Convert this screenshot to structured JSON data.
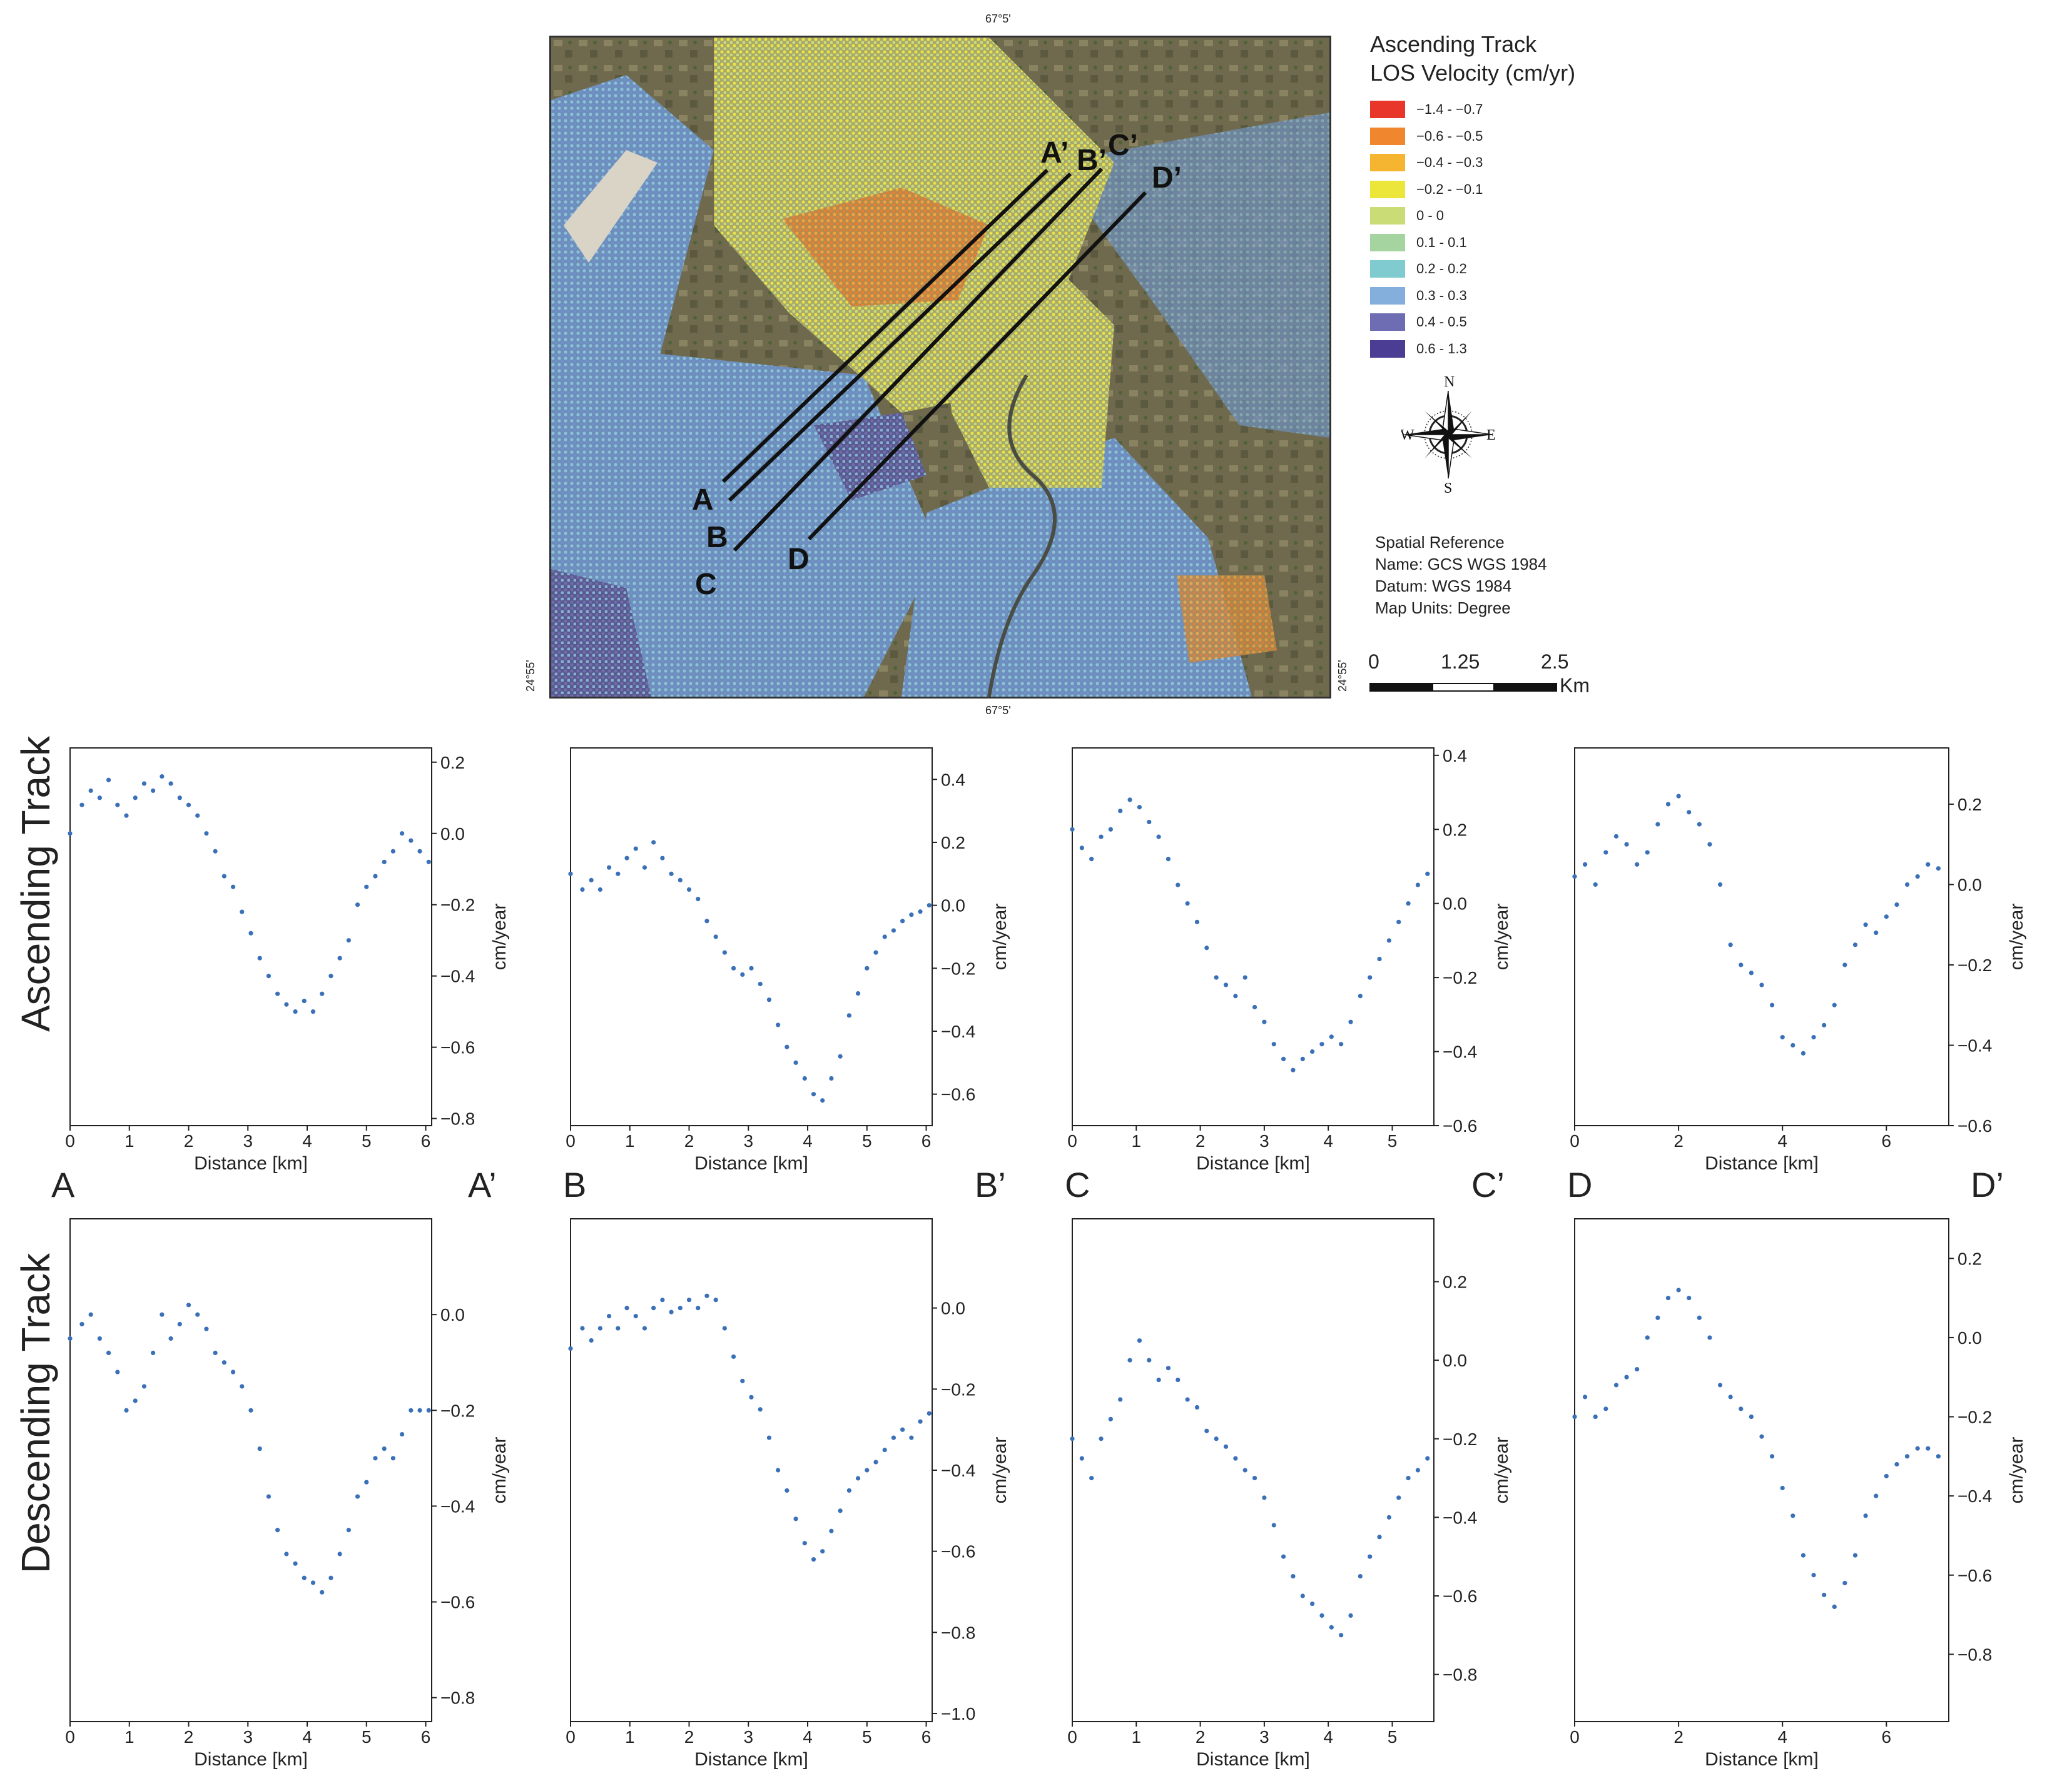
{
  "map": {
    "coord_top": "67°5'",
    "coord_bottom": "67°5'",
    "coord_left": "24°55'",
    "coord_right": "24°55'",
    "profile_labels": {
      "A": "A",
      "A_end": "A’",
      "B": "B",
      "B_end": "B’",
      "C": "C",
      "C_end": "C’",
      "D": "D",
      "D_end": "D’"
    }
  },
  "legend": {
    "title_line1": "Ascending Track",
    "title_line2": "LOS Velocity (cm/yr)",
    "classes": [
      {
        "label": "−1.4 - −0.7",
        "color": "#e8372a"
      },
      {
        "label": "−0.6 - −0.5",
        "color": "#f0862e"
      },
      {
        "label": "−0.4 - −0.3",
        "color": "#f5b531"
      },
      {
        "label": "−0.2 - −0.1",
        "color": "#ede63a"
      },
      {
        "label": "0 - 0",
        "color": "#c9dc75"
      },
      {
        "label": "0.1 - 0.1",
        "color": "#a6d4a1"
      },
      {
        "label": "0.2 - 0.2",
        "color": "#7fcbcf"
      },
      {
        "label": "0.3 - 0.3",
        "color": "#84aedc"
      },
      {
        "label": "0.4 - 0.5",
        "color": "#6e6cb2"
      },
      {
        "label": "0.6 - 1.3",
        "color": "#4b3d94"
      }
    ]
  },
  "compass": {
    "n": "N",
    "s": "S",
    "e": "E",
    "w": "W"
  },
  "spatial_reference": {
    "line1": "Spatial Reference",
    "line2": "Name: GCS WGS 1984",
    "line3": "Datum: WGS 1984",
    "line4": "Map Units: Degree"
  },
  "scalebar": {
    "t0": "0",
    "t1": "1.25",
    "t2": "2.5",
    "unit": "Km"
  },
  "rows": {
    "ascending": "Ascending Track",
    "descending": "Descending Track"
  },
  "profile_names": [
    {
      "start": "A",
      "end": "A’"
    },
    {
      "start": "B",
      "end": "B’"
    },
    {
      "start": "C",
      "end": "C’"
    },
    {
      "start": "D",
      "end": "D’"
    }
  ],
  "colors": {
    "point": "#3a70b8",
    "axis": "#222222"
  },
  "chart_data": [
    {
      "id": "asc-A",
      "type": "scatter",
      "track": "Ascending Track",
      "xlabel": "Distance [km]",
      "ylabel": "cm/year",
      "xlim": [
        0,
        6.1
      ],
      "ylim": [
        -0.82,
        0.24
      ],
      "xticks": [
        0,
        1,
        2,
        3,
        4,
        5,
        6
      ],
      "yticks": [
        0.2,
        0.0,
        -0.2,
        -0.4,
        -0.6,
        -0.8
      ],
      "x": [
        0,
        0.2,
        0.35,
        0.5,
        0.65,
        0.8,
        0.95,
        1.1,
        1.25,
        1.4,
        1.55,
        1.7,
        1.85,
        2.0,
        2.15,
        2.3,
        2.45,
        2.6,
        2.75,
        2.9,
        3.05,
        3.2,
        3.35,
        3.5,
        3.65,
        3.8,
        3.95,
        4.1,
        4.25,
        4.4,
        4.55,
        4.7,
        4.85,
        5.0,
        5.15,
        5.3,
        5.45,
        5.6,
        5.75,
        5.9,
        6.05
      ],
      "y": [
        0.0,
        0.08,
        0.12,
        0.1,
        0.15,
        0.08,
        0.05,
        0.1,
        0.14,
        0.12,
        0.16,
        0.14,
        0.1,
        0.08,
        0.05,
        0.0,
        -0.05,
        -0.12,
        -0.15,
        -0.22,
        -0.28,
        -0.35,
        -0.4,
        -0.45,
        -0.48,
        -0.5,
        -0.47,
        -0.5,
        -0.45,
        -0.4,
        -0.35,
        -0.3,
        -0.2,
        -0.15,
        -0.12,
        -0.08,
        -0.05,
        0.0,
        -0.02,
        -0.05,
        -0.08
      ]
    },
    {
      "id": "asc-B",
      "type": "scatter",
      "track": "Ascending Track",
      "xlabel": "Distance [km]",
      "ylabel": "cm/year",
      "xlim": [
        0,
        6.1
      ],
      "ylim": [
        -0.7,
        0.5
      ],
      "xticks": [
        0,
        1,
        2,
        3,
        4,
        5,
        6
      ],
      "yticks": [
        0.4,
        0.2,
        0.0,
        -0.2,
        -0.4,
        -0.6
      ],
      "x": [
        0,
        0.2,
        0.35,
        0.5,
        0.65,
        0.8,
        0.95,
        1.1,
        1.25,
        1.4,
        1.55,
        1.7,
        1.85,
        2.0,
        2.15,
        2.3,
        2.45,
        2.6,
        2.75,
        2.9,
        3.05,
        3.2,
        3.35,
        3.5,
        3.65,
        3.8,
        3.95,
        4.1,
        4.25,
        4.4,
        4.55,
        4.7,
        4.85,
        5.0,
        5.15,
        5.3,
        5.45,
        5.6,
        5.75,
        5.9,
        6.05
      ],
      "y": [
        0.1,
        0.05,
        0.08,
        0.05,
        0.12,
        0.1,
        0.15,
        0.18,
        0.12,
        0.2,
        0.15,
        0.1,
        0.08,
        0.05,
        0.02,
        -0.05,
        -0.1,
        -0.15,
        -0.2,
        -0.22,
        -0.2,
        -0.25,
        -0.3,
        -0.38,
        -0.45,
        -0.5,
        -0.55,
        -0.6,
        -0.62,
        -0.55,
        -0.48,
        -0.35,
        -0.28,
        -0.2,
        -0.15,
        -0.1,
        -0.08,
        -0.05,
        -0.03,
        -0.02,
        0.0
      ]
    },
    {
      "id": "asc-C",
      "type": "scatter",
      "track": "Ascending Track",
      "xlabel": "Distance [km]",
      "ylabel": "cm/year",
      "xlim": [
        0,
        5.65
      ],
      "ylim": [
        -0.6,
        0.42
      ],
      "xticks": [
        0,
        1,
        2,
        3,
        4,
        5
      ],
      "yticks": [
        0.4,
        0.2,
        0.0,
        -0.2,
        -0.4,
        -0.6
      ],
      "x": [
        0,
        0.15,
        0.3,
        0.45,
        0.6,
        0.75,
        0.9,
        1.05,
        1.2,
        1.35,
        1.5,
        1.65,
        1.8,
        1.95,
        2.1,
        2.25,
        2.4,
        2.55,
        2.7,
        2.85,
        3.0,
        3.15,
        3.3,
        3.45,
        3.6,
        3.75,
        3.9,
        4.05,
        4.2,
        4.35,
        4.5,
        4.65,
        4.8,
        4.95,
        5.1,
        5.25,
        5.4,
        5.55
      ],
      "y": [
        0.2,
        0.15,
        0.12,
        0.18,
        0.2,
        0.25,
        0.28,
        0.26,
        0.22,
        0.18,
        0.12,
        0.05,
        0.0,
        -0.05,
        -0.12,
        -0.2,
        -0.22,
        -0.25,
        -0.2,
        -0.28,
        -0.32,
        -0.38,
        -0.42,
        -0.45,
        -0.42,
        -0.4,
        -0.38,
        -0.36,
        -0.38,
        -0.32,
        -0.25,
        -0.2,
        -0.15,
        -0.1,
        -0.05,
        0.0,
        0.05,
        0.08
      ]
    },
    {
      "id": "asc-D",
      "type": "scatter",
      "track": "Ascending Track",
      "xlabel": "Distance [km]",
      "ylabel": "cm/year",
      "xlim": [
        0,
        7.2
      ],
      "ylim": [
        -0.6,
        0.34
      ],
      "xticks": [
        0,
        2,
        4,
        6
      ],
      "yticks": [
        0.2,
        0.0,
        -0.2,
        -0.4,
        -0.6
      ],
      "x": [
        0,
        0.2,
        0.4,
        0.6,
        0.8,
        1.0,
        1.2,
        1.4,
        1.6,
        1.8,
        2.0,
        2.2,
        2.4,
        2.6,
        2.8,
        3.0,
        3.2,
        3.4,
        3.6,
        3.8,
        4.0,
        4.2,
        4.4,
        4.6,
        4.8,
        5.0,
        5.2,
        5.4,
        5.6,
        5.8,
        6.0,
        6.2,
        6.4,
        6.6,
        6.8,
        7.0
      ],
      "y": [
        0.02,
        0.05,
        0.0,
        0.08,
        0.12,
        0.1,
        0.05,
        0.08,
        0.15,
        0.2,
        0.22,
        0.18,
        0.15,
        0.1,
        0.0,
        -0.15,
        -0.2,
        -0.22,
        -0.25,
        -0.3,
        -0.38,
        -0.4,
        -0.42,
        -0.38,
        -0.35,
        -0.3,
        -0.2,
        -0.15,
        -0.1,
        -0.12,
        -0.08,
        -0.05,
        0.0,
        0.02,
        0.05,
        0.04
      ]
    },
    {
      "id": "desc-A",
      "type": "scatter",
      "track": "Descending Track",
      "xlabel": "Distance [km]",
      "ylabel": "cm/year",
      "xlim": [
        0,
        6.1
      ],
      "ylim": [
        -0.85,
        0.2
      ],
      "xticks": [
        0,
        1,
        2,
        3,
        4,
        5,
        6
      ],
      "yticks": [
        0.0,
        -0.2,
        -0.4,
        -0.6,
        -0.8
      ],
      "x": [
        0,
        0.2,
        0.35,
        0.5,
        0.65,
        0.8,
        0.95,
        1.1,
        1.25,
        1.4,
        1.55,
        1.7,
        1.85,
        2.0,
        2.15,
        2.3,
        2.45,
        2.6,
        2.75,
        2.9,
        3.05,
        3.2,
        3.35,
        3.5,
        3.65,
        3.8,
        3.95,
        4.1,
        4.25,
        4.4,
        4.55,
        4.7,
        4.85,
        5.0,
        5.15,
        5.3,
        5.45,
        5.6,
        5.75,
        5.9,
        6.05
      ],
      "y": [
        -0.05,
        -0.02,
        0.0,
        -0.05,
        -0.08,
        -0.12,
        -0.2,
        -0.18,
        -0.15,
        -0.08,
        0.0,
        -0.05,
        -0.02,
        0.02,
        0.0,
        -0.03,
        -0.08,
        -0.1,
        -0.12,
        -0.15,
        -0.2,
        -0.28,
        -0.38,
        -0.45,
        -0.5,
        -0.52,
        -0.55,
        -0.56,
        -0.58,
        -0.55,
        -0.5,
        -0.45,
        -0.38,
        -0.35,
        -0.3,
        -0.28,
        -0.3,
        -0.25,
        -0.2,
        -0.2,
        -0.2
      ]
    },
    {
      "id": "desc-B",
      "type": "scatter",
      "track": "Descending Track",
      "xlabel": "Distance [km]",
      "ylabel": "cm/year",
      "xlim": [
        0,
        6.1
      ],
      "ylim": [
        -1.02,
        0.22
      ],
      "xticks": [
        0,
        1,
        2,
        3,
        4,
        5,
        6
      ],
      "yticks": [
        0.0,
        -0.2,
        -0.4,
        -0.6,
        -0.8,
        -1.0
      ],
      "x": [
        0,
        0.2,
        0.35,
        0.5,
        0.65,
        0.8,
        0.95,
        1.1,
        1.25,
        1.4,
        1.55,
        1.7,
        1.85,
        2.0,
        2.15,
        2.3,
        2.45,
        2.6,
        2.75,
        2.9,
        3.05,
        3.2,
        3.35,
        3.5,
        3.65,
        3.8,
        3.95,
        4.1,
        4.25,
        4.4,
        4.55,
        4.7,
        4.85,
        5.0,
        5.15,
        5.3,
        5.45,
        5.6,
        5.75,
        5.9,
        6.05
      ],
      "y": [
        -0.1,
        -0.05,
        -0.08,
        -0.05,
        -0.02,
        -0.05,
        0.0,
        -0.02,
        -0.05,
        0.0,
        0.02,
        -0.01,
        0.0,
        0.02,
        0.0,
        0.03,
        0.02,
        -0.05,
        -0.12,
        -0.18,
        -0.22,
        -0.25,
        -0.32,
        -0.4,
        -0.45,
        -0.52,
        -0.58,
        -0.62,
        -0.6,
        -0.55,
        -0.5,
        -0.45,
        -0.42,
        -0.4,
        -0.38,
        -0.35,
        -0.32,
        -0.3,
        -0.32,
        -0.28,
        -0.26
      ]
    },
    {
      "id": "desc-C",
      "type": "scatter",
      "track": "Descending Track",
      "xlabel": "Distance [km]",
      "ylabel": "cm/year",
      "xlim": [
        0,
        5.65
      ],
      "ylim": [
        -0.92,
        0.36
      ],
      "xticks": [
        0,
        1,
        2,
        3,
        4,
        5
      ],
      "yticks": [
        0.2,
        0.0,
        -0.2,
        -0.4,
        -0.6,
        -0.8
      ],
      "x": [
        0,
        0.15,
        0.3,
        0.45,
        0.6,
        0.75,
        0.9,
        1.05,
        1.2,
        1.35,
        1.5,
        1.65,
        1.8,
        1.95,
        2.1,
        2.25,
        2.4,
        2.55,
        2.7,
        2.85,
        3.0,
        3.15,
        3.3,
        3.45,
        3.6,
        3.75,
        3.9,
        4.05,
        4.2,
        4.35,
        4.5,
        4.65,
        4.8,
        4.95,
        5.1,
        5.25,
        5.4,
        5.55
      ],
      "y": [
        -0.2,
        -0.25,
        -0.3,
        -0.2,
        -0.15,
        -0.1,
        0.0,
        0.05,
        0.0,
        -0.05,
        -0.02,
        -0.05,
        -0.1,
        -0.12,
        -0.18,
        -0.2,
        -0.22,
        -0.25,
        -0.28,
        -0.3,
        -0.35,
        -0.42,
        -0.5,
        -0.55,
        -0.6,
        -0.62,
        -0.65,
        -0.68,
        -0.7,
        -0.65,
        -0.55,
        -0.5,
        -0.45,
        -0.4,
        -0.35,
        -0.3,
        -0.28,
        -0.25
      ]
    },
    {
      "id": "desc-D",
      "type": "scatter",
      "track": "Descending Track",
      "xlabel": "Distance [km]",
      "ylabel": "cm/year",
      "xlim": [
        0,
        7.2
      ],
      "ylim": [
        -0.97,
        0.3
      ],
      "xticks": [
        0,
        2,
        4,
        6
      ],
      "yticks": [
        0.2,
        0.0,
        -0.2,
        -0.4,
        -0.6,
        -0.8
      ],
      "x": [
        0,
        0.2,
        0.4,
        0.6,
        0.8,
        1.0,
        1.2,
        1.4,
        1.6,
        1.8,
        2.0,
        2.2,
        2.4,
        2.6,
        2.8,
        3.0,
        3.2,
        3.4,
        3.6,
        3.8,
        4.0,
        4.2,
        4.4,
        4.6,
        4.8,
        5.0,
        5.2,
        5.4,
        5.6,
        5.8,
        6.0,
        6.2,
        6.4,
        6.6,
        6.8,
        7.0
      ],
      "y": [
        -0.2,
        -0.15,
        -0.2,
        -0.18,
        -0.12,
        -0.1,
        -0.08,
        0.0,
        0.05,
        0.1,
        0.12,
        0.1,
        0.05,
        0.0,
        -0.12,
        -0.15,
        -0.18,
        -0.2,
        -0.25,
        -0.3,
        -0.38,
        -0.45,
        -0.55,
        -0.6,
        -0.65,
        -0.68,
        -0.62,
        -0.55,
        -0.45,
        -0.4,
        -0.35,
        -0.32,
        -0.3,
        -0.28,
        -0.28,
        -0.3
      ]
    }
  ]
}
